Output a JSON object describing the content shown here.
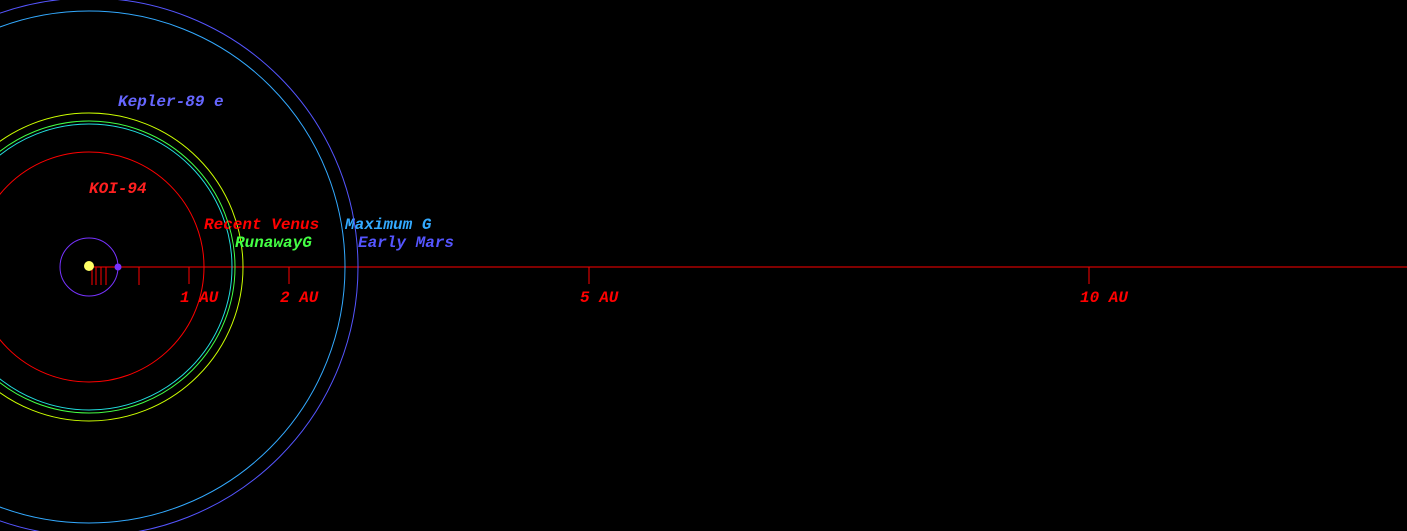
{
  "diagram": {
    "star": {
      "name": "KOI-94",
      "color": "#ffff66",
      "name_color": "#ff2020"
    },
    "axis": {
      "color": "#ff0000",
      "ticks": [
        {
          "value": 1,
          "label": "1 AU"
        },
        {
          "value": 2,
          "label": "2 AU"
        },
        {
          "value": 5,
          "label": "5 AU"
        },
        {
          "value": 10,
          "label": "10 AU"
        }
      ],
      "minor_ticks": [
        0.03,
        0.07,
        0.12,
        0.17,
        0.5
      ]
    },
    "planets": [
      {
        "name": "Kepler-89 e",
        "color": "#7733ff",
        "label_color": "#6666ff",
        "orbit": 0.29
      }
    ],
    "zones": [
      {
        "name": "Recent Venus",
        "color": "#ff0000",
        "radius": 1.15
      },
      {
        "name": "RunawayG",
        "color": "#44ff44",
        "radius": 1.46
      },
      {
        "name": "Maximum G",
        "color": "#33aaff",
        "radius": 2.56
      },
      {
        "name": "Early Mars",
        "color": "#5555ff",
        "radius": 2.69
      }
    ],
    "extra_orbits": [
      {
        "color": "#22dddd",
        "radius": 1.43
      },
      {
        "color": "#ccff00",
        "radius": 1.54
      }
    ]
  }
}
